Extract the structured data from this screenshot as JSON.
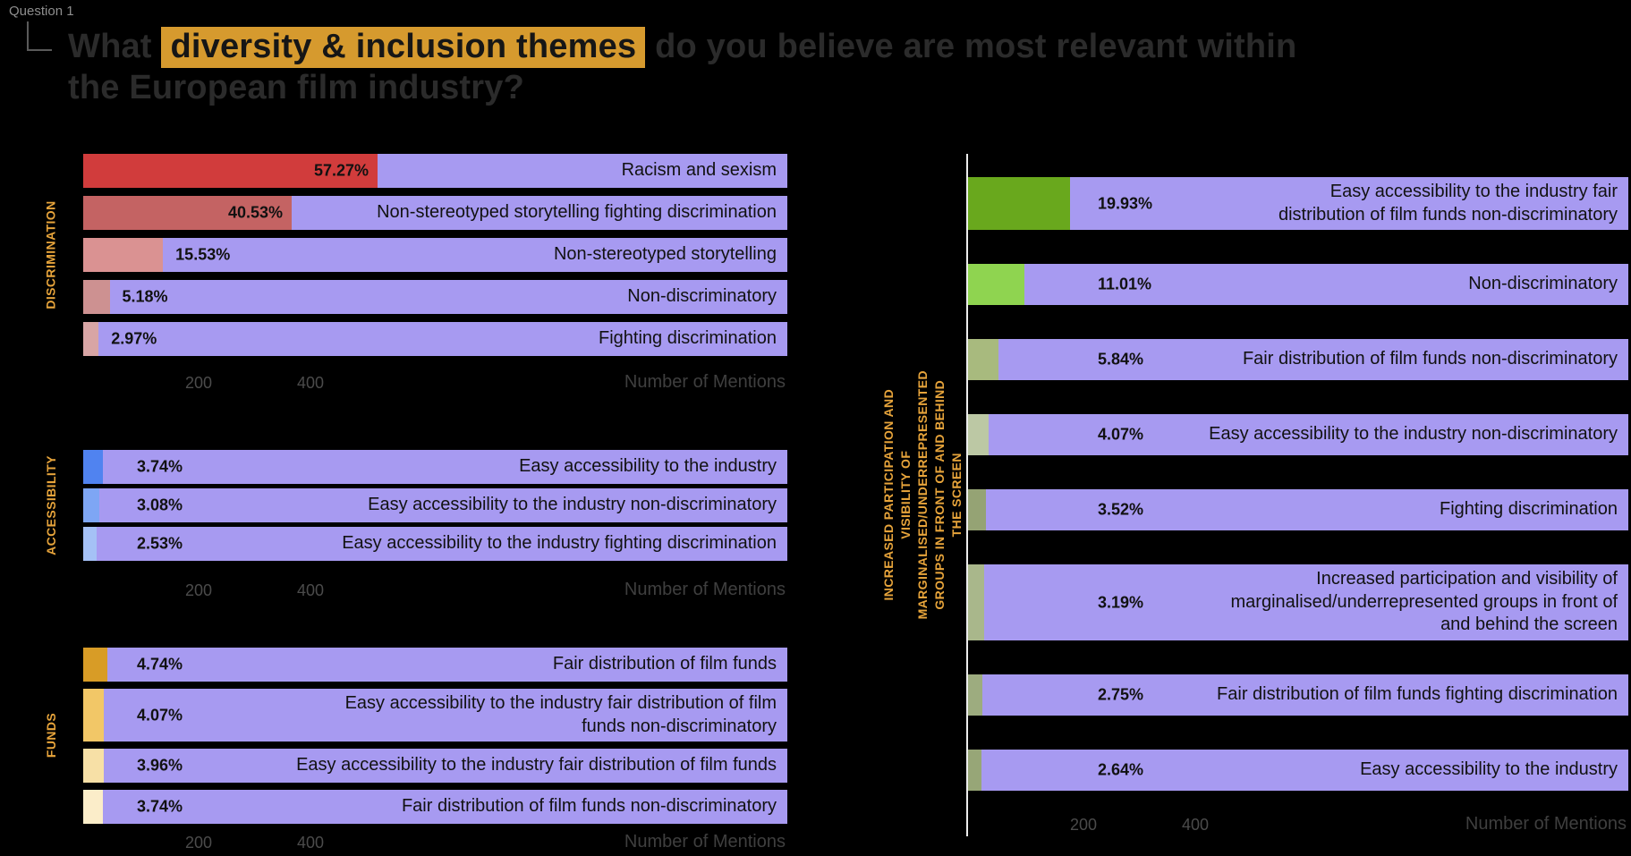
{
  "header": {
    "question_tag": "Question 1",
    "title_pre": "What ",
    "title_highlight": "diversity & inclusion themes",
    "title_post": " do you believe are most relevant within\nthe European film industry?"
  },
  "colors": {
    "background": "#000000",
    "bar_track": "#a79af1",
    "title_highlight_bg": "#d69a2e",
    "group_label_text": "#e7a43b",
    "axis_tick_text": "#4b4b4b",
    "axis_label_text": "#3f3f3f",
    "bar_text": "#121212",
    "right_axis_line": "#ececec"
  },
  "chart_data": [
    {
      "type": "bar",
      "orientation": "horizontal",
      "group_label": "DISCRIMINATION",
      "xlabel": "Number of Mentions",
      "x_ticks": [
        "200",
        "400"
      ],
      "x_unit": "mentions",
      "bars": [
        {
          "label": "Racism and sexism",
          "pct": 57.27,
          "pct_label": "57.27%",
          "mentions": 535,
          "color": "#d13c3c"
        },
        {
          "label": "Non-stereotyped storytelling fighting discrimination",
          "pct": 40.53,
          "pct_label": "40.53%",
          "mentions": 379,
          "color": "#c46363"
        },
        {
          "label": "Non-stereotyped storytelling",
          "pct": 15.53,
          "pct_label": "15.53%",
          "mentions": 145,
          "color": "#da9292"
        },
        {
          "label": "Non-discriminatory",
          "pct": 5.18,
          "pct_label": "5.18%",
          "mentions": 48,
          "color": "#cd9191"
        },
        {
          "label": "Fighting discrimination",
          "pct": 2.97,
          "pct_label": "2.97%",
          "mentions": 28,
          "color": "#d8a5a5"
        }
      ]
    },
    {
      "type": "bar",
      "orientation": "horizontal",
      "group_label": "ACCESSIBILITY",
      "xlabel": "Number of Mentions",
      "x_ticks": [
        "200",
        "400"
      ],
      "x_unit": "mentions",
      "bars": [
        {
          "label": "Easy accessibility to the industry",
          "pct": 3.74,
          "pct_label": "3.74%",
          "mentions": 35,
          "color": "#5083f0"
        },
        {
          "label": "Easy accessibility to the industry non-discriminatory",
          "pct": 3.08,
          "pct_label": "3.08%",
          "mentions": 29,
          "color": "#7ea6f4"
        },
        {
          "label": "Easy accessibility to the industry fighting discrimination",
          "pct": 2.53,
          "pct_label": "2.53%",
          "mentions": 24,
          "color": "#a5c1f6"
        }
      ]
    },
    {
      "type": "bar",
      "orientation": "horizontal",
      "group_label": "FUNDS",
      "xlabel": "Number of Mentions",
      "x_ticks": [
        "200",
        "400"
      ],
      "x_unit": "mentions",
      "bars": [
        {
          "label": "Fair distribution of film funds",
          "pct": 4.74,
          "pct_label": "4.74%",
          "mentions": 44,
          "color": "#d89c26"
        },
        {
          "label": "Easy accessibility to the industry fair distribution of film\nfunds non-discriminatory",
          "pct": 4.07,
          "pct_label": "4.07%",
          "mentions": 38,
          "color": "#f2c767"
        },
        {
          "label": "Easy accessibility to the industry fair distribution of film funds",
          "pct": 3.96,
          "pct_label": "3.96%",
          "mentions": 37,
          "color": "#f7e0a6"
        },
        {
          "label": "Fair distribution of film funds non-discriminatory",
          "pct": 3.74,
          "pct_label": "3.74%",
          "mentions": 35,
          "color": "#fbedc9"
        }
      ]
    },
    {
      "type": "bar",
      "orientation": "horizontal",
      "group_label": "INCREASED PARTICIPATION AND VISIBILITY OF MARGINALISED/UNDERREPRESENTED\nGROUPS IN FRONT OF AND BEHIND THE SCREEN",
      "xlabel": "Number of Mentions",
      "x_ticks": [
        "200",
        "400"
      ],
      "x_unit": "mentions",
      "bars": [
        {
          "label": "Easy accessibility to the industry fair\ndistribution of film funds non-discriminatory",
          "pct": 19.93,
          "pct_label": "19.93%",
          "mentions": 186,
          "color": "#69a81d"
        },
        {
          "label": "Non-discriminatory",
          "pct": 11.01,
          "pct_label": "11.01%",
          "mentions": 103,
          "color": "#8fd450"
        },
        {
          "label": "Fair distribution of film funds non-discriminatory",
          "pct": 5.84,
          "pct_label": "5.84%",
          "mentions": 55,
          "color": "#a8ba7e"
        },
        {
          "label": "Easy accessibility to the industry non-discriminatory",
          "pct": 4.07,
          "pct_label": "4.07%",
          "mentions": 38,
          "color": "#bcc8a4"
        },
        {
          "label": "Fighting discrimination",
          "pct": 3.52,
          "pct_label": "3.52%",
          "mentions": 33,
          "color": "#95a374"
        },
        {
          "label": "Increased participation and visibility of\nmarginalised/underrepresented groups in front of\nand behind the screen",
          "pct": 3.19,
          "pct_label": "3.19%",
          "mentions": 30,
          "color": "#a9b78b"
        },
        {
          "label": "Fair distribution of film funds fighting discrimination",
          "pct": 2.75,
          "pct_label": "2.75%",
          "mentions": 26,
          "color": "#9dac7f"
        },
        {
          "label": "Easy accessibility to the industry",
          "pct": 2.64,
          "pct_label": "2.64%",
          "mentions": 25,
          "color": "#97a677"
        }
      ]
    }
  ]
}
